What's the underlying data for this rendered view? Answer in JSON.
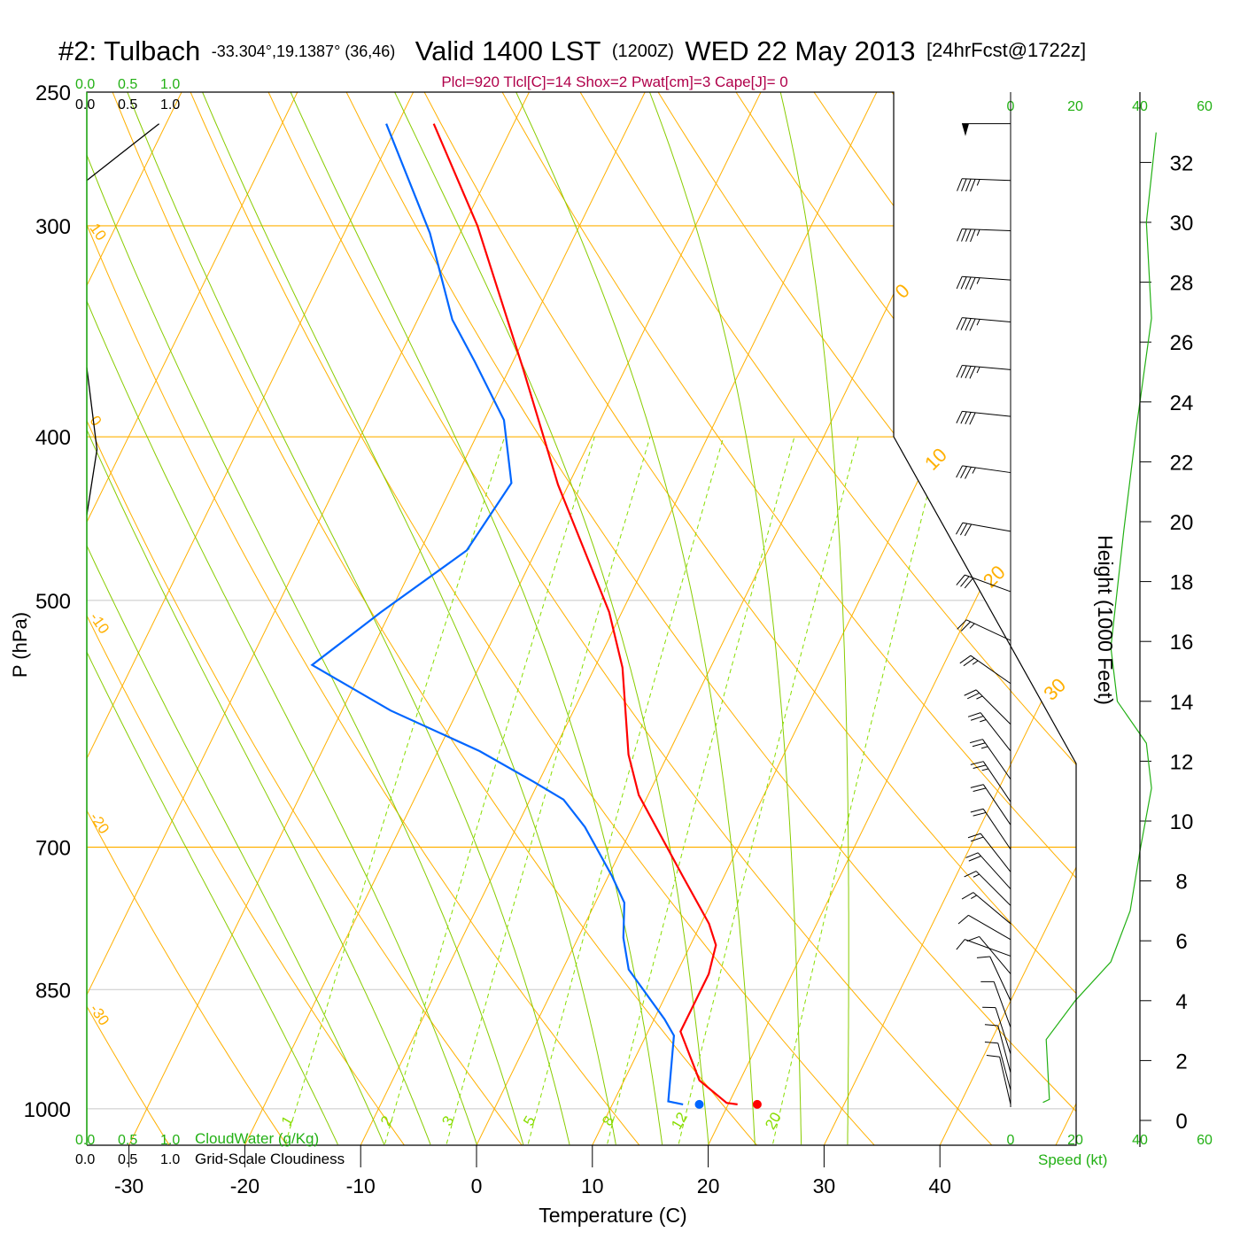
{
  "chart_data": {
    "type": "line",
    "subtype": "skew-t log-p sounding",
    "title": {
      "station": "#2: Tulbach",
      "coords": "-33.304°,19.1387° (36,46)",
      "valid": "Valid 1400 LST",
      "utc": "(1200Z)",
      "date": "WED 22 May 2013",
      "forecast": "[24hrFcst@1722z]"
    },
    "indices": "Plcl=920 Tlcl[C]=14 Shox=2 Pwat[cm]=3 Cape[J]= 0",
    "xlabel": "Temperature (C)",
    "ylabel": "P (hPa)",
    "right_ylabel": "Height (1000 Feet)",
    "x_ticks": [
      -30,
      -20,
      -10,
      0,
      10,
      20,
      30,
      40
    ],
    "x_tick_labels": [
      "-30",
      "-20",
      "-10",
      "0",
      "10",
      "20",
      "30",
      "40"
    ],
    "y_ticks": [
      250,
      300,
      400,
      500,
      700,
      850,
      1000
    ],
    "y_tick_labels": [
      "250",
      "300",
      "400",
      "500",
      "700",
      "850",
      "1000"
    ],
    "highlight_isobars": [
      300,
      400,
      700
    ],
    "plain_isobars": [
      500,
      850,
      1000
    ],
    "height_ticks": [
      0,
      2,
      4,
      6,
      8,
      10,
      12,
      14,
      16,
      18,
      20,
      22,
      24,
      26,
      28,
      30,
      32
    ],
    "height_tick_labels": [
      "0",
      "2",
      "4",
      "6",
      "8",
      "10",
      "12",
      "14",
      "16",
      "18",
      "20",
      "22",
      "24",
      "26",
      "28",
      "30",
      "32"
    ],
    "speed_axis": {
      "label": "Speed (kt)",
      "ticks": [
        "0",
        "20",
        "40",
        "60"
      ],
      "values": [
        0,
        20,
        40,
        60
      ]
    },
    "cloudwater_axis": {
      "label": "CloudWater (g/Kg)",
      "ticks": [
        "0.0",
        "0.5",
        "1.0"
      ]
    },
    "cloudiness_axis": {
      "label": "Grid-Scale Cloudiness",
      "ticks": [
        "0.0",
        "0.5",
        "1.0"
      ]
    },
    "isotherm_labels": [
      {
        "t": 0,
        "text": "0",
        "p": 330
      },
      {
        "t": 10,
        "text": "10",
        "p": 415
      },
      {
        "t": 20,
        "text": "20",
        "p": 487
      },
      {
        "t": 30,
        "text": "30",
        "p": 568
      }
    ],
    "dry_adiabat_labels": [
      {
        "theta": 10,
        "text": "10"
      },
      {
        "theta": 0,
        "text": "0"
      },
      {
        "theta": -10,
        "text": "-10"
      },
      {
        "theta": -20,
        "text": "-20"
      },
      {
        "theta": -30,
        "text": "-30"
      }
    ],
    "mixing_ratios": [
      1,
      2,
      3,
      5,
      8,
      12,
      20
    ],
    "mixing_ratio_labels": [
      "1",
      "2",
      "3",
      "5",
      "8",
      "12",
      "20"
    ],
    "moist_adiabat_start_T1050": [
      -12,
      -8,
      -4,
      0,
      4,
      8,
      12,
      16,
      20,
      24,
      28,
      32
    ],
    "series": [
      {
        "name": "Temperature",
        "color": "#ff0000",
        "points": [
          [
            994,
            20.8
          ],
          [
            992,
            19.8
          ],
          [
            962,
            16.5
          ],
          [
            900,
            12.8
          ],
          [
            873,
            12.8
          ],
          [
            832,
            12.8
          ],
          [
            800,
            12.2
          ],
          [
            777,
            10.7
          ],
          [
            728,
            6.4
          ],
          [
            652,
            -0.8
          ],
          [
            617,
            -3.4
          ],
          [
            548,
            -7.6
          ],
          [
            508,
            -11.1
          ],
          [
            427,
            -20.9
          ],
          [
            364,
            -28.9
          ],
          [
            300,
            -38.8
          ],
          [
            261,
            -46.9
          ]
        ]
      },
      {
        "name": "Dewpoint",
        "color": "#0066ff",
        "points": [
          [
            994,
            16.1
          ],
          [
            990,
            14.7
          ],
          [
            905,
            12.4
          ],
          [
            885,
            10.9
          ],
          [
            827,
            5.7
          ],
          [
            792,
            3.9
          ],
          [
            755,
            2.5
          ],
          [
            728,
            0.3
          ],
          [
            681,
            -4.1
          ],
          [
            656,
            -7.1
          ],
          [
            640,
            -10.5
          ],
          [
            614,
            -16.4
          ],
          [
            581,
            -25.8
          ],
          [
            546,
            -34.5
          ],
          [
            508,
            -30.8
          ],
          [
            467,
            -26
          ],
          [
            426,
            -25
          ],
          [
            391,
            -28.3
          ],
          [
            361,
            -33.3
          ],
          [
            341,
            -37
          ],
          [
            303,
            -42.6
          ],
          [
            261,
            -51
          ]
        ]
      }
    ],
    "surface_points": {
      "temperature": [
        994,
        22.5
      ],
      "dewpoint": [
        994,
        17.5
      ]
    },
    "cloudiness_series": [
      [
        [
          0,
          282
        ],
        [
          0.85,
          261
        ]
      ],
      [
        [
          0,
          364
        ],
        [
          0.12,
          407
        ],
        [
          0,
          445
        ]
      ]
    ],
    "wind_speed_profile": [
      [
        10,
        0.6
      ],
      [
        12,
        0.7
      ],
      [
        11,
        2.7
      ],
      [
        20,
        4
      ],
      [
        31,
        5.3
      ],
      [
        37,
        7
      ],
      [
        40,
        9
      ],
      [
        43.6,
        11.1
      ],
      [
        42,
        12.6
      ],
      [
        33,
        14
      ],
      [
        31,
        15.8
      ],
      [
        35,
        19.7
      ],
      [
        39,
        23.2
      ],
      [
        43.6,
        26.8
      ],
      [
        42,
        30
      ],
      [
        45,
        33
      ]
    ],
    "wind_barbs": [
      {
        "p": 261,
        "dir": 270,
        "spd": 50
      },
      {
        "p": 282,
        "dir": 272,
        "spd": 45
      },
      {
        "p": 302,
        "dir": 272,
        "spd": 45
      },
      {
        "p": 323,
        "dir": 274,
        "spd": 45
      },
      {
        "p": 342,
        "dir": 275,
        "spd": 45
      },
      {
        "p": 365,
        "dir": 275,
        "spd": 45
      },
      {
        "p": 389,
        "dir": 276,
        "spd": 40
      },
      {
        "p": 420,
        "dir": 278,
        "spd": 35
      },
      {
        "p": 455,
        "dir": 280,
        "spd": 30
      },
      {
        "p": 494,
        "dir": 290,
        "spd": 30
      },
      {
        "p": 528,
        "dir": 295,
        "spd": 25
      },
      {
        "p": 560,
        "dir": 305,
        "spd": 25
      },
      {
        "p": 592,
        "dir": 315,
        "spd": 25
      },
      {
        "p": 614,
        "dir": 322,
        "spd": 25
      },
      {
        "p": 638,
        "dir": 325,
        "spd": 25
      },
      {
        "p": 658,
        "dir": 326,
        "spd": 25
      },
      {
        "p": 679,
        "dir": 326,
        "spd": 20
      },
      {
        "p": 702,
        "dir": 326,
        "spd": 20
      },
      {
        "p": 724,
        "dir": 322,
        "spd": 20
      },
      {
        "p": 741,
        "dir": 318,
        "spd": 20
      },
      {
        "p": 758,
        "dir": 315,
        "spd": 15
      },
      {
        "p": 777,
        "dir": 310,
        "spd": 15
      },
      {
        "p": 794,
        "dir": 300,
        "spd": 10
      },
      {
        "p": 812,
        "dir": 290,
        "spd": 10
      },
      {
        "p": 832,
        "dir": 320,
        "spd": 10
      },
      {
        "p": 863,
        "dir": 335,
        "spd": 10
      },
      {
        "p": 895,
        "dir": 340,
        "spd": 10
      },
      {
        "p": 928,
        "dir": 342,
        "spd": 10
      },
      {
        "p": 952,
        "dir": 345,
        "spd": 10
      },
      {
        "p": 975,
        "dir": 345,
        "spd": 10
      },
      {
        "p": 994,
        "dir": 347,
        "spd": 10
      }
    ],
    "colors": {
      "isotherm": "#ffb000",
      "dry_adiabat": "#ffb000",
      "moist_adiabat": "#88cc00",
      "mixing_ratio": "#88dd00",
      "isobar_plain": "#c8c8c8",
      "axis_green": "#22b014"
    }
  }
}
